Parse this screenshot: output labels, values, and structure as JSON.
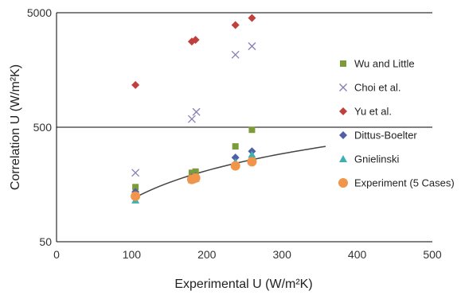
{
  "chart_data": {
    "type": "scatter",
    "xlabel": "Experimental U (W/m²K)",
    "ylabel": "Correlation U (W/m²K)",
    "xlim": [
      0,
      500
    ],
    "ylim": [
      50,
      5000
    ],
    "y_scale": "log",
    "x_ticks": [
      "0",
      "100",
      "200",
      "300",
      "400",
      "500"
    ],
    "y_ticks": [
      {
        "value": 50,
        "label": "50"
      },
      {
        "value": 500,
        "label": "500"
      },
      {
        "value": 5000,
        "label": "5000"
      }
    ],
    "grid": "horizontal major lines at 500 and 5000",
    "legend": "right",
    "series": [
      {
        "name": "Wu and Little",
        "marker": "square",
        "color": "#7e9b3c",
        "x": [
          105,
          180,
          185,
          238,
          260
        ],
        "y": [
          150,
          200,
          205,
          340,
          475
        ]
      },
      {
        "name": "Choi et al.",
        "marker": "x",
        "color": "#8b7cb8",
        "x": [
          105,
          180,
          186,
          238,
          260
        ],
        "y": [
          200,
          590,
          680,
          2150,
          2550
        ]
      },
      {
        "name": "Yu et al.",
        "marker": "diamond",
        "color": "#c0403d",
        "x": [
          105,
          180,
          185,
          238,
          260
        ],
        "y": [
          1170,
          2800,
          2900,
          3900,
          4500
        ]
      },
      {
        "name": "Dittus-Boelter",
        "marker": "diamond",
        "color": "#4f5fa8",
        "x": [
          105,
          180,
          185,
          238,
          260
        ],
        "y": [
          136,
          182,
          187,
          272,
          308
        ]
      },
      {
        "name": "Gnielinski",
        "marker": "triangle",
        "color": "#3fb0b0",
        "x": [
          105,
          180,
          185,
          238,
          260
        ],
        "y": [
          115,
          173,
          178,
          248,
          288
        ]
      },
      {
        "name": "Experiment (5 Cases)",
        "marker": "circle",
        "color": "#f0954a",
        "x": [
          105,
          180,
          185,
          238,
          260
        ],
        "y": [
          125,
          175,
          180,
          230,
          250
        ]
      }
    ],
    "trendline": {
      "name": "",
      "color": "#444444",
      "x_start": 105,
      "x_end": 358,
      "y_start": 122,
      "y_end": 340
    }
  }
}
